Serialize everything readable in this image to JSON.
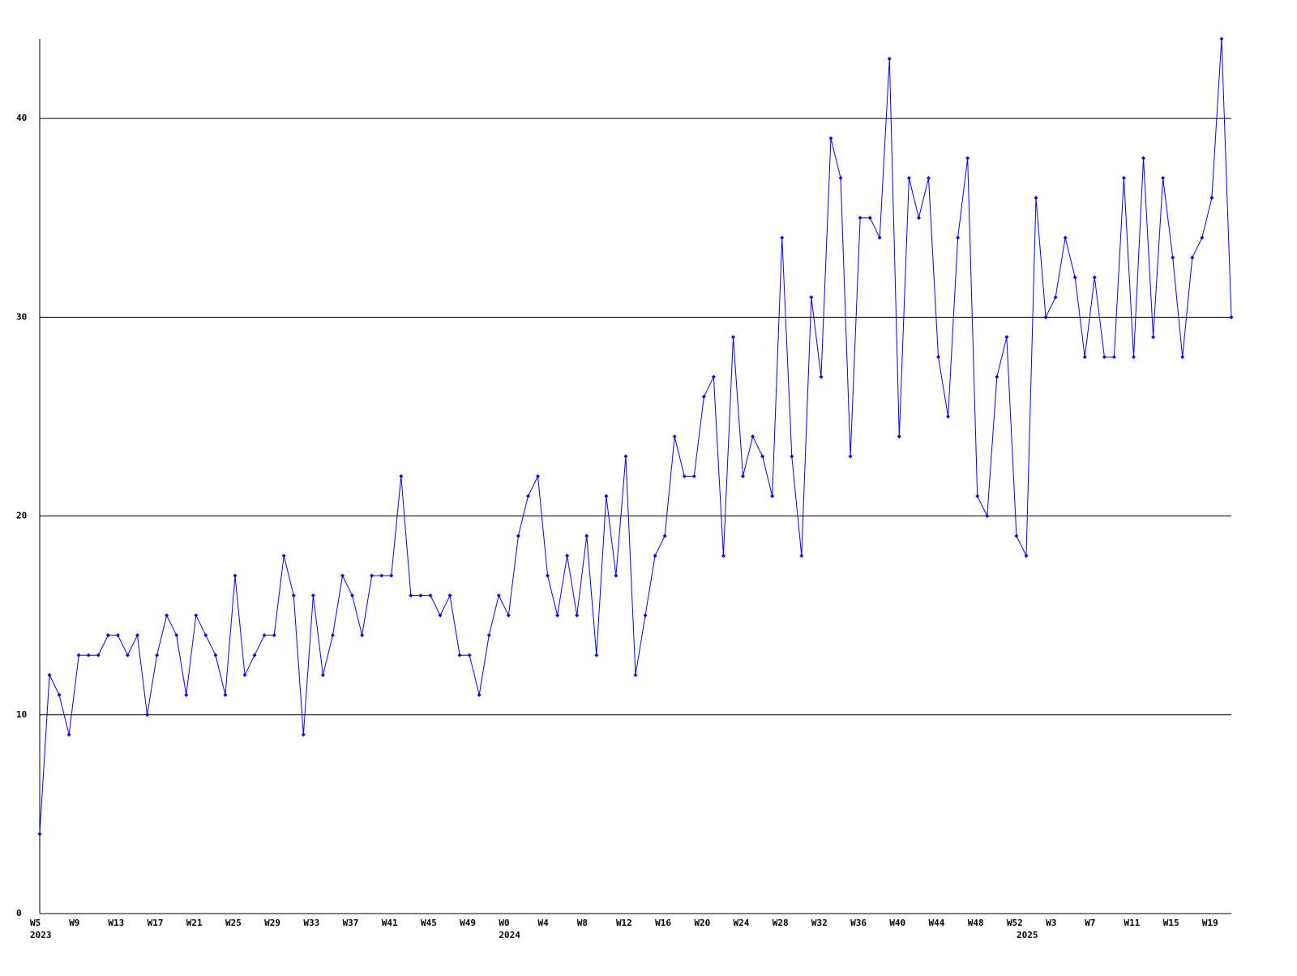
{
  "chart_data": {
    "type": "line",
    "categories": [
      "W5",
      null,
      null,
      null,
      "W9",
      null,
      null,
      null,
      "W13",
      null,
      null,
      null,
      "W17",
      null,
      null,
      null,
      "W21",
      null,
      null,
      null,
      "W25",
      null,
      null,
      null,
      "W29",
      null,
      null,
      null,
      "W33",
      null,
      null,
      null,
      "W37",
      null,
      null,
      null,
      "W41",
      null,
      null,
      null,
      "W45",
      null,
      null,
      null,
      "W49",
      null,
      null,
      null,
      "W0",
      null,
      null,
      null,
      "W4",
      null,
      null,
      null,
      "W8",
      null,
      null,
      null,
      "W12",
      null,
      null,
      null,
      "W16",
      null,
      null,
      null,
      "W20",
      null,
      null,
      null,
      "W24",
      null,
      null,
      null,
      "W28",
      null,
      null,
      null,
      "W32",
      null,
      null,
      null,
      "W36",
      null,
      null,
      null,
      "W40",
      null,
      null,
      null,
      "W44",
      null,
      null,
      null,
      "W48",
      null,
      null,
      null,
      "W52",
      null,
      null,
      null,
      "W3",
      null,
      null,
      null,
      "W7",
      null,
      null,
      null,
      "W11",
      null,
      null,
      null,
      "W15",
      null,
      null,
      null,
      "W19",
      null,
      null
    ],
    "category_years": [
      "2023",
      null,
      null,
      null,
      null,
      null,
      null,
      null,
      null,
      null,
      null,
      null,
      null,
      null,
      null,
      null,
      null,
      null,
      null,
      null,
      null,
      null,
      null,
      null,
      null,
      null,
      null,
      null,
      null,
      null,
      null,
      null,
      null,
      null,
      null,
      null,
      null,
      null,
      null,
      null,
      null,
      null,
      null,
      null,
      null,
      null,
      null,
      null,
      "2024",
      null,
      null,
      null,
      null,
      null,
      null,
      null,
      null,
      null,
      null,
      null,
      null,
      null,
      null,
      null,
      null,
      null,
      null,
      null,
      null,
      null,
      null,
      null,
      null,
      null,
      null,
      null,
      null,
      null,
      null,
      null,
      null,
      null,
      null,
      null,
      null,
      null,
      null,
      null,
      null,
      null,
      null,
      null,
      null,
      null,
      null,
      null,
      null,
      null,
      null,
      null,
      null,
      "2025",
      null,
      null,
      null,
      null,
      null,
      null,
      null,
      null,
      null,
      null,
      null,
      null,
      null,
      null,
      null,
      null,
      null,
      null,
      null,
      null,
      null
    ],
    "values": [
      4,
      12,
      11,
      9,
      13,
      13,
      13,
      14,
      14,
      13,
      14,
      10,
      13,
      15,
      14,
      11,
      15,
      14,
      13,
      11,
      17,
      12,
      13,
      14,
      14,
      18,
      16,
      9,
      16,
      12,
      14,
      17,
      16,
      14,
      17,
      17,
      17,
      22,
      16,
      16,
      16,
      15,
      16,
      13,
      13,
      11,
      14,
      16,
      15,
      19,
      21,
      22,
      17,
      15,
      18,
      15,
      19,
      13,
      21,
      17,
      23,
      12,
      15,
      18,
      19,
      24,
      22,
      22,
      26,
      27,
      18,
      29,
      22,
      24,
      23,
      21,
      34,
      23,
      18,
      31,
      27,
      39,
      37,
      23,
      35,
      35,
      34,
      43,
      24,
      37,
      35,
      37,
      28,
      25,
      34,
      38,
      21,
      20,
      27,
      29,
      19,
      18,
      36,
      30,
      31,
      34,
      32,
      28,
      32,
      28,
      28,
      37,
      28,
      38,
      29,
      37,
      33,
      28,
      33,
      34,
      36,
      44,
      30
    ],
    "color": "#0000ff",
    "ylim": [
      0,
      44
    ],
    "yticks": [
      0,
      10,
      20,
      30,
      40
    ],
    "grid": true
  }
}
